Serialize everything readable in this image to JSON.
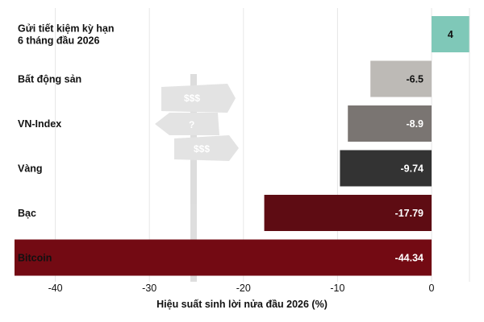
{
  "chart_data": {
    "type": "bar",
    "orientation": "horizontal",
    "categories": [
      "Gửi tiết kiệm kỳ hạn 6 tháng đầu 2026",
      "Bất động sản",
      "VN-Index",
      "Vàng",
      "Bạc",
      "Bitcoin"
    ],
    "category_lines": [
      [
        "Gửi tiết kiệm kỳ hạn",
        "6 tháng đầu 2026"
      ],
      [
        "Bất động sản"
      ],
      [
        "VN-Index"
      ],
      [
        "Vàng"
      ],
      [
        "Bạc"
      ],
      [
        "Bitcoin"
      ]
    ],
    "values": [
      4,
      -6.5,
      -8.9,
      -9.74,
      -17.79,
      -44.34
    ],
    "value_labels": [
      "4",
      "-6.5",
      "-8.9",
      "-9.74",
      "-17.79",
      "-44.34"
    ],
    "colors": [
      "#7fc8b8",
      "#bdbab6",
      "#7a7572",
      "#333333",
      "#5e0c13",
      "#730a13"
    ],
    "label_colors": [
      "#111111",
      "#111111",
      "#ffffff",
      "#ffffff",
      "#ffffff",
      "#ffffff"
    ],
    "category_label_colors": [
      "#111111",
      "#111111",
      "#111111",
      "#111111",
      "#111111",
      "#ffffff"
    ],
    "xticks": [
      -40,
      -30,
      -20,
      -10,
      0
    ],
    "xtick_labels": [
      "-40",
      "-30",
      "-20",
      "-10",
      "0"
    ],
    "xlim": [
      -44.34,
      4
    ],
    "xlabel": "Hiệu suất sinh lời nửa đầu 2026 (%)",
    "ylabel": "",
    "title": "",
    "grid": true,
    "decoration": "signpost-illustration"
  }
}
